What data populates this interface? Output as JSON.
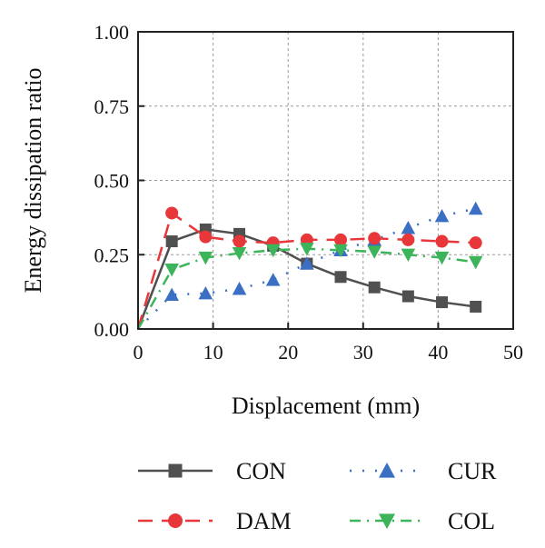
{
  "chart_data": {
    "type": "line",
    "xlabel": "Displacement (mm)",
    "ylabel": "Energy dissipation ratio",
    "xlim": [
      0,
      50
    ],
    "ylim": [
      0,
      1.0
    ],
    "x_ticks": [
      "0",
      "10",
      "20",
      "30",
      "40",
      "50"
    ],
    "y_ticks": [
      "0.00",
      "0.25",
      "0.50",
      "0.75",
      "1.00"
    ],
    "grid": true,
    "legend_position": "bottom",
    "series": [
      {
        "name": "CON",
        "color": "#505050",
        "marker": "square",
        "line_style": "solid",
        "x": [
          0,
          4.5,
          9,
          13.5,
          18,
          22.5,
          27,
          31.5,
          36,
          40.5,
          45
        ],
        "y": [
          0.0,
          0.295,
          0.335,
          0.32,
          0.28,
          0.22,
          0.175,
          0.14,
          0.11,
          0.09,
          0.075
        ]
      },
      {
        "name": "CUR",
        "color": "#3b6fc4",
        "marker": "triangle-up",
        "line_style": "dotted",
        "x": [
          0,
          4.5,
          9,
          13.5,
          18,
          22.5,
          27,
          31.5,
          36,
          40.5,
          45
        ],
        "y": [
          0.0,
          0.115,
          0.12,
          0.135,
          0.165,
          0.22,
          0.265,
          0.3,
          0.34,
          0.38,
          0.405
        ]
      },
      {
        "name": "DAM",
        "color": "#e8373a",
        "marker": "circle",
        "line_style": "dashed",
        "x": [
          0,
          4.5,
          9,
          13.5,
          18,
          22.5,
          27,
          31.5,
          36,
          40.5,
          45
        ],
        "y": [
          0.0,
          0.39,
          0.31,
          0.295,
          0.29,
          0.3,
          0.3,
          0.305,
          0.3,
          0.295,
          0.29
        ]
      },
      {
        "name": "COL",
        "color": "#3cb45a",
        "marker": "triangle-down",
        "line_style": "dashdot",
        "x": [
          0,
          4.5,
          9,
          13.5,
          18,
          22.5,
          27,
          31.5,
          36,
          40.5,
          45
        ],
        "y": [
          0.0,
          0.2,
          0.24,
          0.255,
          0.265,
          0.27,
          0.265,
          0.26,
          0.25,
          0.24,
          0.225
        ]
      }
    ]
  }
}
